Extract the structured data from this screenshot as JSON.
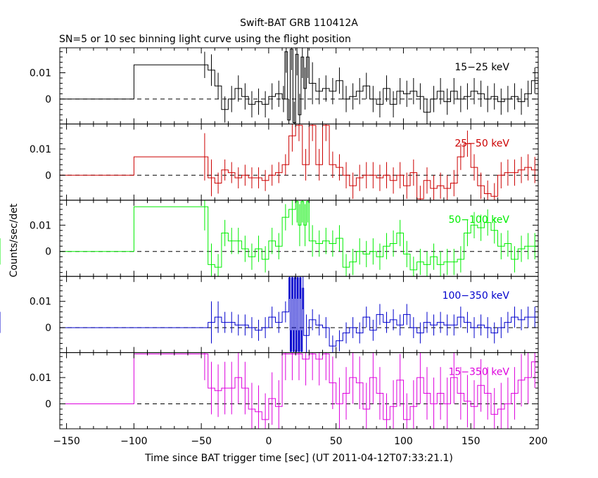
{
  "title": "Swift-BAT GRB 110412A",
  "subtitle": "SN=5 or 10 sec binning light curve using the flight position",
  "ylabel": "Counts/sec/det",
  "xlabel": "Time since BAT trigger time [sec] (UT 2011-04-12T07:33:21.1)",
  "chart_data": {
    "type": "line",
    "x_ticks": [
      -150,
      -100,
      -50,
      0,
      50,
      100,
      150,
      200
    ],
    "x_tick_labels": [
      "−150",
      "−100",
      "−50",
      "0",
      "50",
      "100",
      "150",
      "200"
    ],
    "xlim": [
      -155,
      200
    ],
    "ylim": [
      -0.0095,
      0.0195
    ],
    "y_ticks": [
      0,
      0.01
    ],
    "y_tick_labels": [
      "0",
      "0.01"
    ],
    "zero_line": "dashed",
    "panels": [
      {
        "name": "15−25 keV",
        "color": "#000000",
        "edges": [
          -155,
          -100,
          -50,
          -45,
          -40,
          -35,
          -30,
          -25,
          -20,
          -15,
          -10,
          -5,
          0,
          5,
          10,
          12,
          14,
          16,
          18,
          20,
          22,
          24,
          26,
          28,
          30,
          35,
          40,
          45,
          50,
          55,
          60,
          65,
          70,
          75,
          80,
          85,
          90,
          95,
          100,
          105,
          110,
          115,
          120,
          125,
          130,
          135,
          140,
          145,
          150,
          155,
          160,
          165,
          170,
          175,
          180,
          185,
          190,
          195,
          200
        ],
        "values": [
          0.0,
          0.013,
          0.013,
          0.011,
          0.005,
          -0.004,
          0.0,
          0.004,
          0.001,
          -0.002,
          -0.001,
          -0.002,
          0.001,
          0.002,
          0.0,
          0.018,
          -0.008,
          0.019,
          -0.009,
          0.017,
          -0.006,
          0.016,
          0.004,
          0.016,
          0.006,
          0.003,
          0.004,
          0.003,
          0.007,
          0.0,
          0.001,
          0.003,
          0.005,
          0.0,
          -0.002,
          0.004,
          -0.002,
          0.003,
          0.002,
          0.003,
          0.001,
          -0.005,
          0.0,
          0.003,
          -0.001,
          0.003,
          0.0,
          0.001,
          0.003,
          0.002,
          0.0,
          0.001,
          -0.001,
          0.0,
          0.001,
          -0.001,
          0.002,
          0.007
        ],
        "errors": [
          0.0,
          0.0,
          0.005,
          0.006,
          0.005,
          0.005,
          0.005,
          0.005,
          0.005,
          0.005,
          0.005,
          0.005,
          0.005,
          0.005,
          0.005,
          0.008,
          0.008,
          0.008,
          0.008,
          0.008,
          0.008,
          0.008,
          0.008,
          0.008,
          0.008,
          0.005,
          0.005,
          0.005,
          0.005,
          0.005,
          0.005,
          0.005,
          0.005,
          0.005,
          0.005,
          0.005,
          0.005,
          0.005,
          0.005,
          0.005,
          0.005,
          0.005,
          0.005,
          0.005,
          0.005,
          0.005,
          0.005,
          0.005,
          0.005,
          0.005,
          0.005,
          0.005,
          0.005,
          0.005,
          0.005,
          0.005,
          0.005,
          0.005
        ]
      },
      {
        "name": "25−50 keV",
        "color": "#cc0000",
        "edges": [
          -155,
          -100,
          -50,
          -45,
          -40,
          -35,
          -30,
          -25,
          -20,
          -15,
          -10,
          -5,
          0,
          5,
          10,
          15,
          20,
          25,
          30,
          35,
          40,
          45,
          50,
          55,
          60,
          65,
          70,
          75,
          80,
          85,
          90,
          95,
          100,
          105,
          110,
          115,
          120,
          125,
          130,
          135,
          140,
          145,
          150,
          155,
          160,
          165,
          170,
          175,
          180,
          185,
          190,
          195,
          200
        ],
        "values": [
          0.0,
          0.007,
          0.007,
          -0.001,
          -0.003,
          0.002,
          0.001,
          -0.001,
          0.0,
          -0.001,
          -0.001,
          -0.002,
          0.0,
          0.001,
          0.004,
          0.015,
          0.019,
          0.004,
          0.019,
          0.004,
          0.019,
          0.004,
          0.003,
          0.0,
          -0.004,
          -0.001,
          0.0,
          0.0,
          -0.001,
          0.0,
          -0.002,
          0.0,
          -0.004,
          0.001,
          -0.009,
          -0.002,
          -0.005,
          -0.004,
          -0.005,
          -0.003,
          0.007,
          0.012,
          0.003,
          -0.004,
          -0.007,
          -0.008,
          0.0,
          0.001,
          0.001,
          0.002,
          0.003,
          0.002
        ],
        "errors": [
          0.0,
          0.0,
          0.009,
          0.007,
          0.004,
          0.004,
          0.004,
          0.004,
          0.004,
          0.004,
          0.004,
          0.004,
          0.004,
          0.004,
          0.004,
          0.006,
          0.006,
          0.006,
          0.006,
          0.006,
          0.006,
          0.005,
          0.005,
          0.005,
          0.005,
          0.005,
          0.005,
          0.005,
          0.005,
          0.005,
          0.005,
          0.005,
          0.005,
          0.005,
          0.005,
          0.005,
          0.005,
          0.005,
          0.005,
          0.005,
          0.005,
          0.005,
          0.005,
          0.005,
          0.005,
          0.005,
          0.005,
          0.005,
          0.005,
          0.005,
          0.005,
          0.005
        ]
      },
      {
        "name": "50−100 keV",
        "color": "#00ee00",
        "edges": [
          -155,
          -100,
          -50,
          -45,
          -40,
          -35,
          -30,
          -25,
          -20,
          -15,
          -10,
          -5,
          0,
          5,
          10,
          15,
          20,
          22,
          24,
          26,
          28,
          30,
          35,
          40,
          45,
          50,
          55,
          60,
          65,
          70,
          75,
          80,
          85,
          90,
          95,
          100,
          105,
          110,
          115,
          120,
          125,
          130,
          135,
          140,
          145,
          150,
          155,
          160,
          165,
          170,
          175,
          180,
          185,
          190,
          195,
          200
        ],
        "values": [
          0.0,
          0.017,
          0.017,
          -0.005,
          -0.006,
          0.007,
          0.004,
          0.004,
          0.001,
          -0.002,
          0.001,
          -0.003,
          0.004,
          0.002,
          0.013,
          0.016,
          0.019,
          0.01,
          0.019,
          0.01,
          0.019,
          0.004,
          0.003,
          0.004,
          0.003,
          0.005,
          -0.006,
          -0.004,
          0.0,
          -0.001,
          0.0,
          -0.002,
          0.002,
          0.003,
          0.007,
          -0.001,
          -0.007,
          -0.004,
          -0.005,
          -0.002,
          -0.005,
          -0.004,
          -0.004,
          -0.003,
          0.007,
          0.01,
          0.009,
          0.011,
          0.008,
          0.002,
          0.003,
          -0.003,
          0.001,
          0.002,
          0.002,
          0.0
        ],
        "errors": [
          0.0,
          0.0,
          0.009,
          0.008,
          0.005,
          0.005,
          0.005,
          0.005,
          0.005,
          0.005,
          0.005,
          0.005,
          0.005,
          0.005,
          0.005,
          0.006,
          0.008,
          0.008,
          0.008,
          0.008,
          0.008,
          0.006,
          0.005,
          0.005,
          0.005,
          0.005,
          0.005,
          0.005,
          0.005,
          0.005,
          0.005,
          0.005,
          0.005,
          0.005,
          0.005,
          0.005,
          0.005,
          0.005,
          0.005,
          0.005,
          0.005,
          0.005,
          0.005,
          0.005,
          0.005,
          0.005,
          0.005,
          0.005,
          0.005,
          0.005,
          0.005,
          0.005,
          0.005,
          0.005,
          0.005,
          0.005
        ]
      },
      {
        "name": "100−350 keV",
        "color": "#0000cc",
        "edges": [
          -155,
          -100,
          -50,
          -45,
          -40,
          -35,
          -30,
          -25,
          -20,
          -15,
          -10,
          -5,
          0,
          5,
          10,
          15,
          16,
          17,
          18,
          19,
          20,
          21,
          22,
          23,
          24,
          25,
          26,
          30,
          35,
          40,
          45,
          50,
          55,
          60,
          65,
          70,
          75,
          80,
          85,
          90,
          95,
          100,
          105,
          110,
          115,
          120,
          125,
          130,
          135,
          140,
          145,
          150,
          155,
          160,
          165,
          170,
          175,
          180,
          185,
          190,
          195,
          200
        ],
        "values": [
          0.0,
          0.0,
          0.0,
          0.002,
          0.004,
          0.002,
          0.002,
          0.001,
          0.001,
          0.0,
          -0.001,
          0.0,
          0.004,
          0.002,
          0.006,
          0.019,
          -0.009,
          0.019,
          -0.009,
          0.019,
          -0.009,
          0.019,
          -0.009,
          0.019,
          -0.009,
          0.015,
          -0.003,
          0.003,
          0.001,
          0.0,
          -0.007,
          -0.005,
          -0.002,
          0.0,
          -0.002,
          0.004,
          -0.001,
          0.005,
          0.002,
          0.003,
          0.001,
          0.005,
          0.0,
          -0.002,
          0.002,
          0.001,
          0.002,
          0.001,
          0.001,
          0.004,
          0.002,
          0.0,
          0.001,
          0.0,
          -0.002,
          0.0,
          0.002,
          0.004,
          0.003,
          0.004,
          0.004,
          0.002
        ],
        "errors": [
          0.0,
          0.0,
          0.0,
          0.008,
          0.006,
          0.004,
          0.004,
          0.004,
          0.004,
          0.004,
          0.004,
          0.004,
          0.004,
          0.004,
          0.004,
          0.008,
          0.008,
          0.008,
          0.008,
          0.008,
          0.008,
          0.008,
          0.008,
          0.008,
          0.008,
          0.008,
          0.008,
          0.004,
          0.004,
          0.004,
          0.004,
          0.004,
          0.004,
          0.004,
          0.004,
          0.004,
          0.004,
          0.004,
          0.004,
          0.004,
          0.004,
          0.004,
          0.004,
          0.004,
          0.004,
          0.004,
          0.004,
          0.004,
          0.004,
          0.004,
          0.004,
          0.004,
          0.004,
          0.004,
          0.004,
          0.004,
          0.004,
          0.004,
          0.004,
          0.004,
          0.004,
          0.004
        ]
      },
      {
        "name": "15−350 keV",
        "color": "#dd00dd",
        "edges": [
          -155,
          -100,
          -50,
          -45,
          -40,
          -35,
          -30,
          -25,
          -20,
          -15,
          -10,
          -5,
          0,
          5,
          10,
          15,
          20,
          25,
          30,
          35,
          40,
          45,
          50,
          55,
          60,
          65,
          70,
          75,
          80,
          85,
          90,
          95,
          100,
          105,
          110,
          115,
          120,
          125,
          130,
          135,
          140,
          145,
          150,
          155,
          160,
          165,
          170,
          175,
          180,
          185,
          190,
          195,
          200
        ],
        "values": [
          0.0,
          0.019,
          0.019,
          0.006,
          0.005,
          0.006,
          0.006,
          0.01,
          0.006,
          -0.002,
          -0.003,
          -0.006,
          0.002,
          -0.001,
          0.019,
          0.019,
          0.019,
          0.017,
          0.019,
          0.017,
          0.019,
          0.008,
          0.0,
          0.004,
          0.01,
          0.008,
          -0.002,
          0.01,
          0.004,
          -0.006,
          -0.001,
          0.009,
          -0.006,
          -0.001,
          0.01,
          0.004,
          0.0,
          0.004,
          0.0,
          0.01,
          0.004,
          0.001,
          -0.001,
          0.007,
          0.004,
          -0.004,
          -0.002,
          0.0,
          0.004,
          0.009,
          0.01,
          0.016
        ],
        "errors": [
          0.0,
          0.0,
          0.01,
          0.01,
          0.01,
          0.01,
          0.01,
          0.01,
          0.01,
          0.01,
          0.01,
          0.01,
          0.01,
          0.01,
          0.01,
          0.01,
          0.01,
          0.01,
          0.01,
          0.01,
          0.01,
          0.01,
          0.01,
          0.01,
          0.01,
          0.01,
          0.01,
          0.01,
          0.01,
          0.01,
          0.01,
          0.01,
          0.01,
          0.01,
          0.01,
          0.01,
          0.01,
          0.01,
          0.01,
          0.01,
          0.01,
          0.01,
          0.01,
          0.01,
          0.01,
          0.01,
          0.01,
          0.01,
          0.01,
          0.01,
          0.01,
          0.01
        ]
      }
    ]
  }
}
